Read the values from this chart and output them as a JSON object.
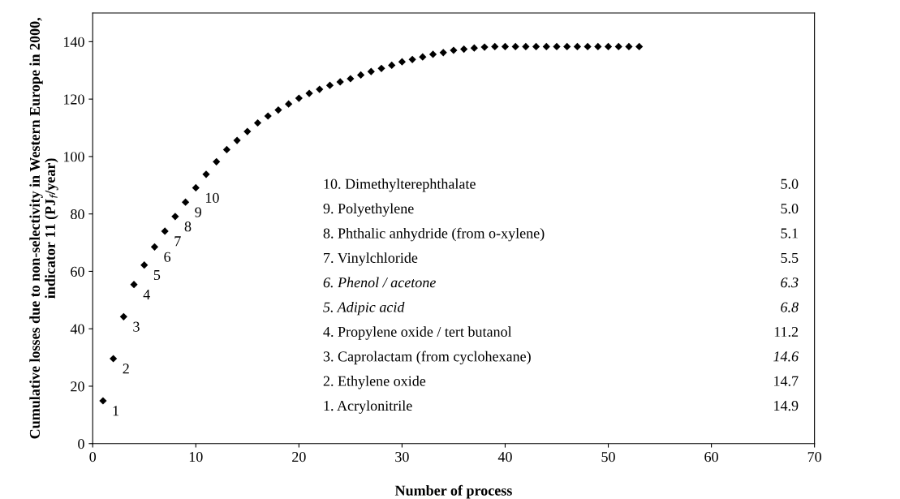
{
  "chart_data": {
    "type": "scatter",
    "xlabel": "Number of process",
    "ylabel": "Cumulative losses due to non-selectivity in Western Europe in 2000, indicator 11 (PJ$_{f}$/year)",
    "x": [
      1,
      2,
      3,
      4,
      5,
      6,
      7,
      8,
      9,
      10,
      11,
      12,
      13,
      14,
      15,
      16,
      17,
      18,
      19,
      20,
      21,
      22,
      23,
      24,
      25,
      26,
      27,
      28,
      29,
      30,
      31,
      32,
      33,
      34,
      35,
      36,
      37,
      38,
      39,
      40,
      41,
      42,
      43,
      44,
      45,
      46,
      47,
      48,
      49,
      50,
      51,
      52,
      53
    ],
    "values": [
      14.9,
      29.6,
      44.2,
      55.4,
      62.2,
      68.5,
      74.0,
      79.1,
      84.1,
      89.1,
      93.8,
      98.2,
      102.4,
      105.6,
      108.7,
      111.7,
      114.1,
      116.2,
      118.3,
      120.3,
      122.0,
      123.4,
      124.8,
      126.0,
      127.1,
      128.4,
      129.6,
      130.7,
      131.8,
      133.0,
      133.8,
      134.7,
      135.6,
      136.2,
      137.0,
      137.4,
      137.8,
      138.1,
      138.3,
      138.3,
      138.3,
      138.3,
      138.3,
      138.3,
      138.3,
      138.3,
      138.3,
      138.3,
      138.3,
      138.3,
      138.3,
      138.3,
      138.3
    ],
    "color": "#000000",
    "marker": "diamond",
    "xlim": [
      0,
      70
    ],
    "xticks": [
      0,
      10,
      20,
      30,
      40,
      50,
      60,
      70
    ],
    "ylim": [
      0,
      150
    ],
    "yticks": [
      0,
      20,
      40,
      60,
      80,
      100,
      120,
      140
    ],
    "grid": false,
    "legend": false,
    "annotations": [
      {
        "text": "1",
        "x": 1,
        "y": 14.9
      },
      {
        "text": "2",
        "x": 2,
        "y": 29.6
      },
      {
        "text": "3",
        "x": 3,
        "y": 44.2
      },
      {
        "text": "4",
        "x": 4,
        "y": 55.4
      },
      {
        "text": "5",
        "x": 5,
        "y": 62.2
      },
      {
        "text": "6",
        "x": 6,
        "y": 68.5
      },
      {
        "text": "7",
        "x": 7,
        "y": 74.0
      },
      {
        "text": "8",
        "x": 8,
        "y": 79.1
      },
      {
        "text": "9",
        "x": 9,
        "y": 84.1
      },
      {
        "text": "10",
        "x": 10,
        "y": 89.1
      },
      "10. Dimethylterephthalate",
      "5.0",
      "9. Polyethylene",
      "5.0",
      "8. Phthalic anhydride (from o-xylene)",
      "5.1",
      "7. Vinylchloride",
      "5.5",
      "6. Phenol / acetone",
      "6.3",
      "5. Adipic acid",
      "6.8",
      "4. Propylene oxide / tert butanol",
      "11.2",
      "3. Caprolactam (from cyclohexane)",
      "14.6",
      "2. Ethylene oxide",
      "14.7",
      "1. Acrylonitrile",
      "14.9"
    ]
  }
}
